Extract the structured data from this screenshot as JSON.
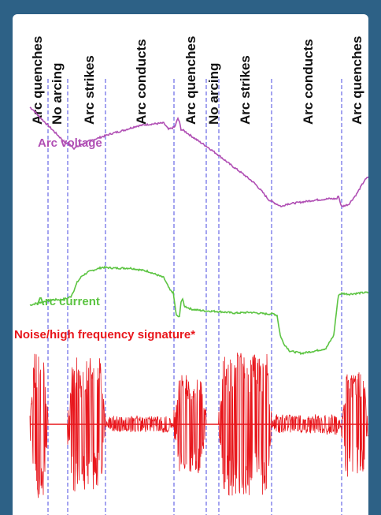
{
  "colors": {
    "frame": "#2d6186",
    "panel": "#ffffff",
    "voltage": "#b04fb4",
    "current": "#5cc442",
    "noise": "#e8161c",
    "divider": "#4a4ae0"
  },
  "chart_data": {
    "type": "line",
    "title": "",
    "xlabel": "",
    "ylabel": "",
    "grid": false,
    "phases": [
      "Arc quenches",
      "No arcing",
      "Arc strikes",
      "Arc conducts",
      "Arc quenches",
      "No arcing",
      "Arc strikes",
      "Arc conducts",
      "Arc quenches"
    ],
    "series": [
      {
        "name": "Arc voltage",
        "x": [
          0,
          5,
          10,
          20,
          30,
          40,
          45,
          48,
          52,
          56,
          58,
          62,
          75,
          90,
          105,
          120,
          135,
          148,
          158,
          170,
          176,
          184,
          188,
          190,
          192,
          196,
          210,
          225,
          240,
          255,
          270,
          285,
          295,
          303,
          312,
          320,
          325,
          340,
          360,
          380,
          390,
          392,
          394,
          396,
          405,
          415,
          425,
          430
        ],
        "values": [
          82,
          78,
          72,
          62,
          52,
          42,
          37,
          36,
          34,
          30,
          31,
          33,
          39,
          44,
          49,
          53,
          58,
          60,
          61,
          62,
          54,
          57,
          68,
          63,
          54,
          52,
          42,
          32,
          21,
          9,
          -2,
          -14,
          -25,
          -35,
          -40,
          -44,
          -41,
          -39,
          -36,
          -34,
          -34,
          -30,
          -38,
          -44,
          -41,
          -28,
          -11,
          -6
        ]
      },
      {
        "name": "Arc current",
        "x": [
          0,
          10,
          20,
          30,
          40,
          48,
          52,
          56,
          60,
          66,
          74,
          82,
          92,
          108,
          128,
          150,
          170,
          178,
          182,
          186,
          190,
          192,
          194,
          196,
          205,
          220,
          240,
          260,
          280,
          300,
          310,
          314,
          318,
          322,
          330,
          345,
          362,
          376,
          386,
          390,
          392,
          396,
          405,
          415,
          425,
          430
        ],
        "values": [
          -17,
          -14,
          -12,
          -10,
          -10,
          -8,
          -6,
          2,
          12,
          20,
          25,
          28,
          31,
          30,
          30,
          26,
          18,
          2,
          -1,
          -30,
          -32,
          -12,
          -9,
          -18,
          -22,
          -24,
          -25,
          -27,
          -26,
          -28,
          -28,
          -30,
          -55,
          -65,
          -75,
          -78,
          -75,
          -72,
          -55,
          -20,
          -4,
          -2,
          -3,
          -2,
          -1,
          -1
        ]
      },
      {
        "name": "Noise/high frequency signature*",
        "amplitude_envelope": [
          {
            "phase": "Arc quenches",
            "amplitude": 1.0
          },
          {
            "phase": "No arcing",
            "amplitude": 0.0
          },
          {
            "phase": "Arc strikes",
            "amplitude": 0.9
          },
          {
            "phase": "Arc conducts",
            "amplitude": 0.1
          },
          {
            "phase": "Arc quenches",
            "amplitude": 0.65
          },
          {
            "phase": "No arcing",
            "amplitude": 0.0
          },
          {
            "phase": "Arc strikes",
            "amplitude": 0.95
          },
          {
            "phase": "Arc conducts",
            "amplitude": 0.12
          },
          {
            "phase": "Arc quenches",
            "amplitude": 0.7
          }
        ]
      }
    ]
  }
}
